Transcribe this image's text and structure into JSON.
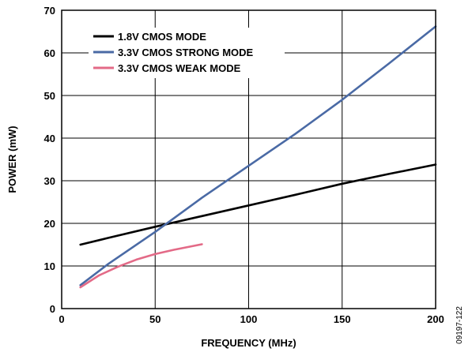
{
  "chart_data": {
    "type": "line",
    "xlabel": "FREQUENCY (MHz)",
    "ylabel": "POWER (mW)",
    "xlim": [
      0,
      200
    ],
    "ylim": [
      0,
      70
    ],
    "x_ticks": [
      0,
      50,
      100,
      150,
      200
    ],
    "y_ticks": [
      0,
      10,
      20,
      30,
      40,
      50,
      60,
      70
    ],
    "grid": true,
    "legend_position": "top-left",
    "figure_id": "09197-122",
    "series": [
      {
        "name": "1.8V CMOS MODE",
        "color": "#000000",
        "x": [
          10,
          25,
          50,
          75,
          100,
          125,
          150,
          175,
          200
        ],
        "y": [
          15.0,
          16.6,
          19.2,
          21.7,
          24.2,
          26.7,
          29.3,
          31.6,
          33.8
        ]
      },
      {
        "name": "3.3V CMOS STRONG MODE",
        "color": "#4a6aa5",
        "x": [
          10,
          25,
          50,
          75,
          100,
          125,
          150,
          175,
          200
        ],
        "y": [
          5.5,
          10.5,
          18.0,
          26.0,
          33.5,
          41.0,
          49.0,
          57.5,
          66.2
        ]
      },
      {
        "name": "3.3V CMOS WEAK MODE",
        "color": "#e36a87",
        "x": [
          10,
          20,
          30,
          40,
          50,
          60,
          75
        ],
        "y": [
          5.0,
          7.8,
          9.8,
          11.5,
          12.8,
          13.8,
          15.1
        ]
      }
    ]
  }
}
